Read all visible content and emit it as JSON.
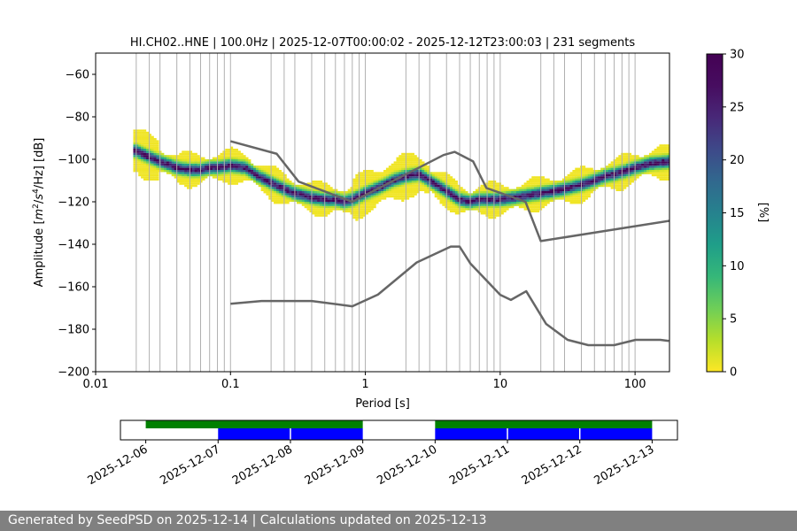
{
  "chart_data": [
    {
      "type": "heatmap",
      "title": "HI.CH02..HNE | 100.0Hz | 2025-12-07T00:00:02 - 2025-12-12T23:00:03 | 231 segments",
      "xlabel": "Period [s]",
      "ylabel": "Amplitude [$m^2$/$s^4$/$Hz$] [dB]",
      "ylabel_parts": {
        "prefix": "Amplitude [",
        "m": "m",
        "m_exp": "2",
        "slash1": "/",
        "s": "s",
        "s_exp": "4",
        "slash2": "/Hz] [dB]"
      },
      "x_scale": "log",
      "xlim": [
        0.01,
        180
      ],
      "ylim": [
        -200,
        -50
      ],
      "x_ticks": [
        0.01,
        0.1,
        1,
        10,
        100
      ],
      "x_tick_labels": [
        "0.01",
        "0.1",
        "1",
        "10",
        "100"
      ],
      "y_ticks": [
        -200,
        -180,
        -160,
        -140,
        -120,
        -100,
        -80,
        -60
      ],
      "y_tick_labels": [
        "−200",
        "−180",
        "−160",
        "−140",
        "−120",
        "−100",
        "−80",
        "−60"
      ],
      "grid": "vertical lines at period bin centers",
      "colorbar": {
        "label": "[%]",
        "range": [
          0,
          30
        ],
        "ticks": [
          0,
          5,
          10,
          15,
          20,
          25,
          30
        ],
        "tick_labels": [
          "0",
          "5",
          "10",
          "15",
          "20",
          "25",
          "30"
        ],
        "colormap": "viridis_r"
      },
      "psd_mode": {
        "periods": [
          0.02,
          0.025,
          0.03,
          0.04,
          0.05,
          0.06,
          0.07,
          0.08,
          0.1,
          0.13,
          0.16,
          0.2,
          0.25,
          0.3,
          0.4,
          0.5,
          0.6,
          0.7,
          0.8,
          1,
          1.3,
          1.6,
          2,
          2.5,
          3,
          4,
          5,
          6,
          7,
          8,
          10,
          13,
          16,
          20,
          25,
          30,
          40,
          50,
          60,
          70,
          80,
          100,
          130,
          180
        ],
        "amplitude_db": [
          -96,
          -99,
          -101,
          -104,
          -105,
          -105,
          -104,
          -104,
          -103,
          -104,
          -108,
          -111,
          -114,
          -116,
          -118,
          -119,
          -119,
          -120,
          -119,
          -116,
          -113,
          -110,
          -108,
          -107,
          -110,
          -115,
          -119,
          -120,
          -119,
          -119,
          -119,
          -118,
          -117,
          -116,
          -115,
          -114,
          -112,
          -110,
          -108,
          -107,
          -106,
          -104,
          -102,
          -101
        ]
      },
      "noise_models": [
        {
          "name": "high",
          "periods": [
            0.1,
            0.22,
            0.32,
            0.8,
            3.8,
            4.6,
            6.3,
            7.9,
            15.4,
            20,
            354.8
          ],
          "amplitude_db": [
            -91.5,
            -97.4,
            -110.5,
            -120,
            -98,
            -96.5,
            -101,
            -113.5,
            -120,
            -138.5,
            -126
          ]
        },
        {
          "name": "low",
          "periods": [
            0.1,
            0.17,
            0.4,
            0.8,
            1.24,
            2.4,
            4.3,
            5,
            6,
            10,
            12,
            15.6,
            21.9,
            31.6,
            45,
            70,
            101,
            154,
            178
          ],
          "amplitude_db": [
            -168,
            -166.7,
            -166.7,
            -169.2,
            -163.7,
            -148.6,
            -141.1,
            -141.1,
            -149,
            -163.8,
            -166.2,
            -162.1,
            -177.5,
            -185,
            -187.5,
            -187.5,
            -185,
            -185,
            -185.5
          ]
        }
      ],
      "colors": {
        "noise_model": "#666666",
        "grid": "#b0b0b0"
      }
    },
    {
      "type": "timeline",
      "x_tick_labels": [
        "2025-12-06",
        "2025-12-07",
        "2025-12-08",
        "2025-12-09",
        "2025-12-10",
        "2025-12-11",
        "2025-12-12",
        "2025-12-13"
      ],
      "xlim_days": [
        -0.35,
        7.35
      ],
      "data_availability": [
        {
          "start_day": 0.0,
          "end_day": 3.0
        },
        {
          "start_day": 4.0,
          "end_day": 7.0
        }
      ],
      "psd_segments": [
        {
          "start_day": 1.0,
          "end_day": 3.0
        },
        {
          "start_day": 4.0,
          "end_day": 7.0
        }
      ],
      "segment_dividers_day": [
        2.0,
        5.0,
        6.0
      ],
      "colors": {
        "availability": "#008000",
        "segments": "#0000ff"
      }
    }
  ],
  "footer": {
    "text": "Generated by SeedPSD on 2025-12-14 | Calculations updated on 2025-12-13"
  }
}
